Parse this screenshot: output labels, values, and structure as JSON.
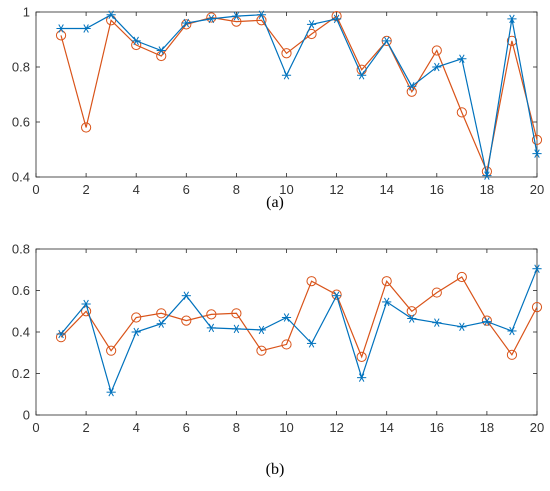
{
  "chart_data": [
    {
      "type": "line",
      "caption": "(a)",
      "x": [
        1,
        2,
        3,
        4,
        5,
        6,
        7,
        8,
        9,
        10,
        11,
        12,
        13,
        14,
        15,
        16,
        17,
        18,
        19,
        20
      ],
      "xlim": [
        0,
        20
      ],
      "ylim": [
        0.4,
        1
      ],
      "xticks": [
        0,
        2,
        4,
        6,
        8,
        10,
        12,
        14,
        16,
        18,
        20
      ],
      "yticks": [
        0.4,
        0.6,
        0.8,
        1
      ],
      "ytick_labels": [
        "0.4",
        "0.6",
        "0.8",
        "1"
      ],
      "grid": false,
      "series": [
        {
          "color": "#0072BD",
          "marker": "asterisk",
          "values": [
            0.94,
            0.94,
            0.99,
            0.895,
            0.86,
            0.96,
            0.975,
            0.985,
            0.99,
            0.77,
            0.955,
            0.975,
            0.77,
            0.895,
            0.73,
            0.8,
            0.83,
            0.405,
            0.975,
            0.485
          ]
        },
        {
          "color": "#D95319",
          "marker": "circle",
          "values": [
            0.915,
            0.58,
            0.97,
            0.88,
            0.84,
            0.955,
            0.98,
            0.965,
            0.97,
            0.85,
            0.92,
            0.985,
            0.79,
            0.895,
            0.71,
            0.86,
            0.635,
            0.42,
            0.895,
            0.535
          ]
        }
      ]
    },
    {
      "type": "line",
      "caption": "(b)",
      "x": [
        1,
        2,
        3,
        4,
        5,
        6,
        7,
        8,
        9,
        10,
        11,
        12,
        13,
        14,
        15,
        16,
        17,
        18,
        19,
        20
      ],
      "xlim": [
        0,
        20
      ],
      "ylim": [
        0,
        0.8
      ],
      "xticks": [
        0,
        2,
        4,
        6,
        8,
        10,
        12,
        14,
        16,
        18,
        20
      ],
      "yticks": [
        0,
        0.2,
        0.4,
        0.6,
        0.8
      ],
      "ytick_labels": [
        "0",
        "0.2",
        "0.4",
        "0.6",
        "0.8"
      ],
      "grid": false,
      "series": [
        {
          "color": "#0072BD",
          "marker": "asterisk",
          "values": [
            0.39,
            0.535,
            0.11,
            0.4,
            0.44,
            0.575,
            0.42,
            0.415,
            0.41,
            0.47,
            0.345,
            0.575,
            0.18,
            0.545,
            0.465,
            0.445,
            0.425,
            0.45,
            0.405,
            0.705
          ]
        },
        {
          "color": "#D95319",
          "marker": "circle",
          "values": [
            0.375,
            0.5,
            0.31,
            0.47,
            0.49,
            0.455,
            0.485,
            0.49,
            0.31,
            0.34,
            0.645,
            0.58,
            0.28,
            0.645,
            0.5,
            0.59,
            0.665,
            0.455,
            0.29,
            0.52
          ]
        }
      ]
    }
  ]
}
